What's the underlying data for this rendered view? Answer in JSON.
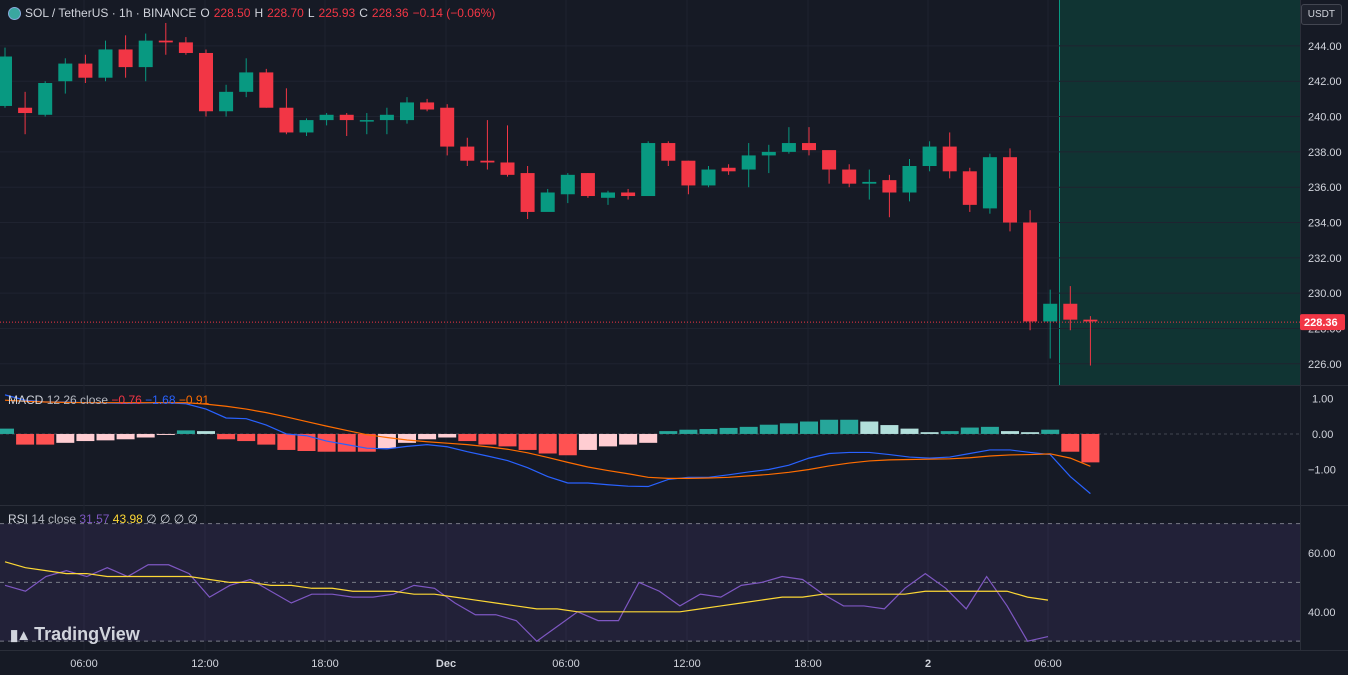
{
  "header": {
    "symbol": "SOL / TetherUS · 1h · BINANCE",
    "o_label": "O",
    "o_val": "228.50",
    "h_label": "H",
    "h_val": "228.70",
    "l_label": "L",
    "l_val": "225.93",
    "c_label": "C",
    "c_val": "228.36",
    "change": "−0.14 (−0.06%)"
  },
  "currency_button": "USDT",
  "brand": "TradingView",
  "macd_legend": {
    "name": "MACD",
    "params": "12 26 close",
    "v1": "−0.76",
    "v2": "−1.68",
    "v3": "−0.91"
  },
  "rsi_legend": {
    "name": "RSI",
    "params": "14 close",
    "v1": "31.57",
    "v2": "43.98",
    "extra": "∅ ∅ ∅ ∅"
  },
  "colors": {
    "up": "#089981",
    "down": "#f23645",
    "macd": "#2962ff",
    "signal": "#ff6d00",
    "rsi": "#7e57c2",
    "rsi_ma": "#fdd835"
  },
  "chart_data": [
    {
      "type": "candlestick",
      "title": "SOL / TetherUS · 1h · BINANCE",
      "ylim": [
        224.8,
        246.6
      ],
      "y_ticks": [
        "226.00",
        "228.00",
        "230.00",
        "232.00",
        "234.00",
        "236.00",
        "238.00",
        "240.00",
        "242.00",
        "244.00"
      ],
      "last_price": "228.36",
      "x_ticks": [
        "06:00",
        "12:00",
        "18:00",
        "Dec",
        "06:00",
        "12:00",
        "18:00",
        "2",
        "06:00"
      ],
      "candles": [
        {
          "o": 240.6,
          "h": 243.9,
          "l": 240.5,
          "c": 243.4
        },
        {
          "o": 240.5,
          "h": 241.4,
          "l": 239.0,
          "c": 240.2
        },
        {
          "o": 240.1,
          "h": 242.0,
          "l": 240.0,
          "c": 241.9
        },
        {
          "o": 242.0,
          "h": 243.3,
          "l": 241.3,
          "c": 243.0
        },
        {
          "o": 243.0,
          "h": 243.5,
          "l": 241.9,
          "c": 242.2
        },
        {
          "o": 242.2,
          "h": 244.3,
          "l": 242.0,
          "c": 243.8
        },
        {
          "o": 243.8,
          "h": 244.6,
          "l": 242.2,
          "c": 242.8
        },
        {
          "o": 242.8,
          "h": 244.7,
          "l": 242.0,
          "c": 244.3
        },
        {
          "o": 244.3,
          "h": 245.3,
          "l": 243.5,
          "c": 244.2
        },
        {
          "o": 244.2,
          "h": 244.5,
          "l": 243.5,
          "c": 243.6
        },
        {
          "o": 243.6,
          "h": 243.8,
          "l": 240.0,
          "c": 240.3
        },
        {
          "o": 240.3,
          "h": 241.8,
          "l": 240.0,
          "c": 241.4
        },
        {
          "o": 241.4,
          "h": 243.3,
          "l": 241.1,
          "c": 242.5
        },
        {
          "o": 242.5,
          "h": 242.7,
          "l": 240.5,
          "c": 240.5
        },
        {
          "o": 240.5,
          "h": 241.6,
          "l": 239.0,
          "c": 239.1
        },
        {
          "o": 239.1,
          "h": 239.9,
          "l": 238.9,
          "c": 239.8
        },
        {
          "o": 239.8,
          "h": 240.2,
          "l": 239.5,
          "c": 240.1
        },
        {
          "o": 240.1,
          "h": 240.2,
          "l": 238.9,
          "c": 239.8
        },
        {
          "o": 239.8,
          "h": 240.2,
          "l": 239.0,
          "c": 239.8
        },
        {
          "o": 239.8,
          "h": 240.5,
          "l": 239.0,
          "c": 240.1
        },
        {
          "o": 239.8,
          "h": 241.1,
          "l": 239.6,
          "c": 240.8
        },
        {
          "o": 240.8,
          "h": 241.0,
          "l": 240.3,
          "c": 240.4
        },
        {
          "o": 240.5,
          "h": 240.7,
          "l": 237.8,
          "c": 238.3
        },
        {
          "o": 238.3,
          "h": 238.8,
          "l": 237.2,
          "c": 237.5
        },
        {
          "o": 237.5,
          "h": 239.8,
          "l": 237.0,
          "c": 237.4
        },
        {
          "o": 237.4,
          "h": 239.5,
          "l": 236.6,
          "c": 236.7
        },
        {
          "o": 236.8,
          "h": 237.2,
          "l": 234.2,
          "c": 234.6
        },
        {
          "o": 234.6,
          "h": 235.9,
          "l": 234.7,
          "c": 235.7
        },
        {
          "o": 235.6,
          "h": 236.8,
          "l": 235.1,
          "c": 236.7
        },
        {
          "o": 236.8,
          "h": 236.8,
          "l": 235.4,
          "c": 235.5
        },
        {
          "o": 235.4,
          "h": 235.8,
          "l": 235.0,
          "c": 235.7
        },
        {
          "o": 235.7,
          "h": 235.9,
          "l": 235.3,
          "c": 235.5
        },
        {
          "o": 235.5,
          "h": 238.6,
          "l": 235.5,
          "c": 238.5
        },
        {
          "o": 238.5,
          "h": 238.6,
          "l": 237.2,
          "c": 237.5
        },
        {
          "o": 237.5,
          "h": 237.5,
          "l": 235.6,
          "c": 236.1
        },
        {
          "o": 236.1,
          "h": 237.2,
          "l": 236.0,
          "c": 237.0
        },
        {
          "o": 237.1,
          "h": 237.3,
          "l": 236.7,
          "c": 236.9
        },
        {
          "o": 237.0,
          "h": 238.5,
          "l": 236.0,
          "c": 237.8
        },
        {
          "o": 237.8,
          "h": 238.4,
          "l": 236.8,
          "c": 238.0
        },
        {
          "o": 238.0,
          "h": 239.4,
          "l": 237.9,
          "c": 238.5
        },
        {
          "o": 238.5,
          "h": 239.4,
          "l": 237.8,
          "c": 238.1
        },
        {
          "o": 238.1,
          "h": 238.0,
          "l": 236.2,
          "c": 237.0
        },
        {
          "o": 237.0,
          "h": 237.3,
          "l": 236.0,
          "c": 236.2
        },
        {
          "o": 236.2,
          "h": 237.0,
          "l": 235.3,
          "c": 236.3
        },
        {
          "o": 236.4,
          "h": 236.7,
          "l": 234.3,
          "c": 235.7
        },
        {
          "o": 235.7,
          "h": 237.6,
          "l": 235.2,
          "c": 237.2
        },
        {
          "o": 237.2,
          "h": 238.6,
          "l": 236.9,
          "c": 238.3
        },
        {
          "o": 238.3,
          "h": 239.1,
          "l": 236.5,
          "c": 236.9
        },
        {
          "o": 236.9,
          "h": 237.1,
          "l": 234.6,
          "c": 235.0
        },
        {
          "o": 234.8,
          "h": 237.9,
          "l": 234.5,
          "c": 237.7
        },
        {
          "o": 237.7,
          "h": 238.2,
          "l": 233.5,
          "c": 234.0
        },
        {
          "o": 234.0,
          "h": 234.7,
          "l": 227.9,
          "c": 228.4
        },
        {
          "o": 228.4,
          "h": 230.2,
          "l": 226.3,
          "c": 229.4
        },
        {
          "o": 229.4,
          "h": 230.4,
          "l": 227.9,
          "c": 228.5
        },
        {
          "o": 228.5,
          "h": 228.7,
          "l": 225.9,
          "c": 228.4
        }
      ]
    },
    {
      "type": "line",
      "title": "MACD 12 26 close",
      "ylim": [
        -2.0,
        1.35
      ],
      "y_ticks": [
        "1.00",
        "0.00",
        "−1.00"
      ],
      "series": [
        {
          "name": "MACD",
          "values": [
            1.1,
            0.95,
            0.9,
            0.9,
            0.88,
            0.87,
            0.86,
            0.87,
            0.88,
            0.85,
            0.7,
            0.45,
            0.43,
            0.25,
            0.0,
            -0.05,
            -0.2,
            -0.3,
            -0.4,
            -0.42,
            -0.35,
            -0.3,
            -0.36,
            -0.5,
            -0.62,
            -0.75,
            -0.95,
            -1.2,
            -1.38,
            -1.38,
            -1.43,
            -1.47,
            -1.48,
            -1.28,
            -1.22,
            -1.22,
            -1.15,
            -1.07,
            -1.0,
            -0.88,
            -0.68,
            -0.55,
            -0.52,
            -0.52,
            -0.58,
            -0.65,
            -0.68,
            -0.65,
            -0.55,
            -0.45,
            -0.45,
            -0.52,
            -0.58,
            -1.2,
            -1.68
          ]
        },
        {
          "name": "Signal",
          "values": [
            0.95,
            0.92,
            0.9,
            0.89,
            0.88,
            0.88,
            0.88,
            0.88,
            0.88,
            0.88,
            0.84,
            0.78,
            0.7,
            0.6,
            0.48,
            0.35,
            0.22,
            0.1,
            -0.02,
            -0.1,
            -0.17,
            -0.22,
            -0.26,
            -0.3,
            -0.36,
            -0.43,
            -0.53,
            -0.66,
            -0.8,
            -0.93,
            -1.03,
            -1.12,
            -1.22,
            -1.25,
            -1.25,
            -1.24,
            -1.22,
            -1.18,
            -1.14,
            -1.08,
            -1.0,
            -0.9,
            -0.82,
            -0.76,
            -0.73,
            -0.72,
            -0.71,
            -0.7,
            -0.67,
            -0.62,
            -0.59,
            -0.58,
            -0.56,
            -0.68,
            -0.91
          ]
        }
      ],
      "histogram": [
        0.15,
        -0.3,
        -0.3,
        -0.25,
        -0.2,
        -0.18,
        -0.15,
        -0.1,
        -0.02,
        0.1,
        0.08,
        -0.15,
        -0.2,
        -0.3,
        -0.45,
        -0.48,
        -0.5,
        -0.5,
        -0.5,
        -0.4,
        -0.25,
        -0.15,
        -0.1,
        -0.2,
        -0.3,
        -0.35,
        -0.45,
        -0.55,
        -0.6,
        -0.45,
        -0.35,
        -0.3,
        -0.25,
        0.08,
        0.12,
        0.14,
        0.17,
        0.2,
        0.26,
        0.3,
        0.35,
        0.4,
        0.4,
        0.35,
        0.25,
        0.15,
        0.05,
        0.08,
        0.18,
        0.2,
        0.08,
        0.05,
        0.12,
        -0.5,
        -0.8
      ]
    },
    {
      "type": "line",
      "title": "RSI 14 close",
      "ylim": [
        27.0,
        76.0
      ],
      "y_ticks": [
        "60.00",
        "40.00"
      ],
      "bands": [
        70,
        50,
        30
      ],
      "series": [
        {
          "name": "RSI",
          "values": [
            49,
            47,
            52,
            54,
            52,
            55,
            52,
            56,
            56,
            53,
            45,
            49,
            51,
            47,
            43,
            46,
            46,
            45,
            45,
            46,
            49,
            48,
            43,
            39,
            39,
            37,
            30,
            35,
            40,
            37,
            37,
            50,
            47,
            42,
            46,
            45,
            49,
            50,
            52,
            51,
            46,
            42,
            42,
            41,
            48,
            53,
            48,
            41,
            52,
            42,
            30,
            31.57
          ]
        },
        {
          "name": "RSI-based MA",
          "values": [
            57,
            55,
            54,
            53,
            53,
            52,
            52,
            52,
            52,
            52,
            51,
            50,
            50,
            49,
            49,
            48,
            48,
            47,
            47,
            47,
            46,
            46,
            45,
            44,
            43,
            42,
            41,
            41,
            40,
            40,
            40,
            40,
            40,
            40,
            41,
            42,
            43,
            44,
            45,
            45,
            46,
            46,
            46,
            46,
            46,
            47,
            47,
            47,
            47,
            47,
            45,
            43.98
          ]
        }
      ]
    }
  ]
}
